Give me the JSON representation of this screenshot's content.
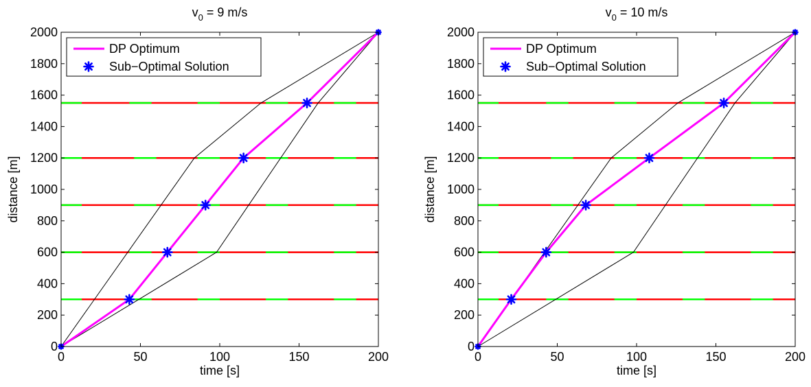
{
  "chart_data": [
    {
      "type": "line",
      "title": "v_0 = 9 m/s",
      "title_parts": {
        "base": "v",
        "sub": "0",
        "rest": " = 9 m/s"
      },
      "xlabel": "time [s]",
      "ylabel": "distance [m]",
      "xlim": [
        0,
        200
      ],
      "ylim": [
        0,
        2000
      ],
      "xticks": [
        0,
        50,
        100,
        150,
        200
      ],
      "yticks": [
        0,
        200,
        400,
        600,
        800,
        1000,
        1200,
        1400,
        1600,
        1800,
        2000
      ],
      "legend": {
        "position": "top-left",
        "entries": [
          "DP Optimum",
          "Sub−Optimal Solution"
        ]
      },
      "series": [
        {
          "name": "DP Optimum",
          "color": "#ff00ff",
          "x": [
            0,
            43,
            67,
            91,
            115,
            155,
            200
          ],
          "y": [
            0,
            300,
            600,
            900,
            1200,
            1550,
            2000
          ]
        },
        {
          "name": "Sub−Optimal Solution",
          "color": "#0000ff",
          "marker": "asterisk",
          "x": [
            43,
            67,
            91,
            115,
            155
          ],
          "y": [
            300,
            600,
            900,
            1200,
            1550
          ]
        }
      ],
      "bounds": [
        {
          "color": "#000000",
          "x": [
            0,
            84,
            126,
            200
          ],
          "y": [
            0,
            1200,
            1550,
            2000
          ]
        },
        {
          "color": "#000000",
          "x": [
            0,
            98,
            162,
            200
          ],
          "y": [
            0,
            600,
            1550,
            2000
          ]
        }
      ],
      "traffic_lights": [
        {
          "y": 300,
          "green": [
            [
              0,
              13
            ],
            [
              43,
              57
            ],
            [
              86,
              100
            ],
            [
              129,
              143
            ],
            [
              172,
              186
            ]
          ]
        },
        {
          "y": 600,
          "green": [
            [
              0,
              13
            ],
            [
              43,
              57
            ],
            [
              86,
              100
            ],
            [
              129,
              143
            ],
            [
              172,
              186
            ]
          ]
        },
        {
          "y": 900,
          "green": [
            [
              0,
              13
            ],
            [
              46,
              60
            ],
            [
              86,
              100
            ],
            [
              129,
              143
            ],
            [
              172,
              186
            ]
          ]
        },
        {
          "y": 1200,
          "green": [
            [
              0,
              13
            ],
            [
              46,
              60
            ],
            [
              86,
              100
            ],
            [
              129,
              143
            ],
            [
              172,
              186
            ]
          ]
        },
        {
          "y": 1550,
          "green": [
            [
              0,
              13
            ],
            [
              43,
              57
            ],
            [
              86,
              100
            ],
            [
              129,
              143
            ],
            [
              172,
              186
            ]
          ]
        }
      ],
      "colors": {
        "green": "#00ff00",
        "red": "#ff0000"
      }
    },
    {
      "type": "line",
      "title": "v_0 = 10 m/s",
      "title_parts": {
        "base": "v",
        "sub": "0",
        "rest": " = 10 m/s"
      },
      "xlabel": "time [s]",
      "ylabel": "distance [m]",
      "xlim": [
        0,
        200
      ],
      "ylim": [
        0,
        2000
      ],
      "xticks": [
        0,
        50,
        100,
        150,
        200
      ],
      "yticks": [
        0,
        200,
        400,
        600,
        800,
        1000,
        1200,
        1400,
        1600,
        1800,
        2000
      ],
      "legend": {
        "position": "top-left",
        "entries": [
          "DP Optimum",
          "Sub−Optimal Solution"
        ]
      },
      "series": [
        {
          "name": "DP Optimum",
          "color": "#ff00ff",
          "x": [
            0,
            21,
            43,
            68,
            108,
            155,
            200
          ],
          "y": [
            0,
            300,
            600,
            900,
            1200,
            1550,
            2000
          ]
        },
        {
          "name": "Sub−Optimal Solution",
          "color": "#0000ff",
          "marker": "asterisk",
          "x": [
            21,
            43,
            68,
            108,
            155
          ],
          "y": [
            300,
            600,
            900,
            1200,
            1550
          ]
        }
      ],
      "bounds": [
        {
          "color": "#000000",
          "x": [
            0,
            84,
            126,
            200
          ],
          "y": [
            0,
            1200,
            1550,
            2000
          ]
        },
        {
          "color": "#000000",
          "x": [
            0,
            98,
            162,
            200
          ],
          "y": [
            0,
            600,
            1550,
            2000
          ]
        }
      ],
      "traffic_lights": [
        {
          "y": 300,
          "green": [
            [
              0,
              13
            ],
            [
              43,
              57
            ],
            [
              86,
              100
            ],
            [
              129,
              143
            ],
            [
              172,
              186
            ]
          ]
        },
        {
          "y": 600,
          "green": [
            [
              0,
              13
            ],
            [
              43,
              57
            ],
            [
              86,
              100
            ],
            [
              129,
              143
            ],
            [
              172,
              186
            ]
          ]
        },
        {
          "y": 900,
          "green": [
            [
              0,
              13
            ],
            [
              46,
              60
            ],
            [
              86,
              100
            ],
            [
              129,
              143
            ],
            [
              172,
              186
            ]
          ]
        },
        {
          "y": 1200,
          "green": [
            [
              0,
              13
            ],
            [
              46,
              60
            ],
            [
              86,
              100
            ],
            [
              129,
              143
            ],
            [
              172,
              186
            ]
          ]
        },
        {
          "y": 1550,
          "green": [
            [
              0,
              13
            ],
            [
              43,
              57
            ],
            [
              86,
              100
            ],
            [
              129,
              143
            ],
            [
              172,
              186
            ]
          ]
        }
      ],
      "colors": {
        "green": "#00ff00",
        "red": "#ff0000"
      }
    }
  ]
}
